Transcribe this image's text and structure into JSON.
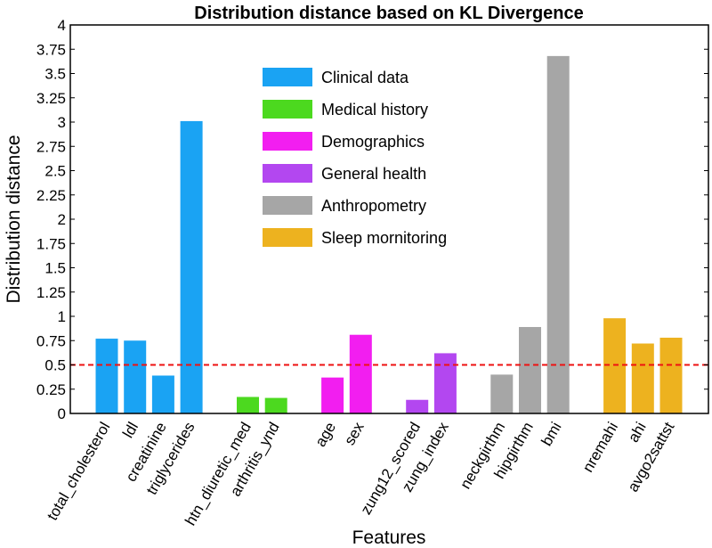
{
  "chart_data": {
    "type": "bar",
    "title": "Distribution distance based on KL Divergence",
    "xlabel": "Features",
    "ylabel": "Distribution distance",
    "ylim": [
      0,
      4
    ],
    "yticks": [
      "0",
      "0.25",
      "0.5",
      "0.75",
      "1",
      "1.25",
      "1.5",
      "1.75",
      "2",
      "2.25",
      "2.5",
      "2.75",
      "3",
      "3.25",
      "3.5",
      "3.75",
      "4"
    ],
    "threshold": 0.5,
    "groups": [
      {
        "name": "Clinical data",
        "color": "#1aa3f3",
        "features": [
          {
            "label": "total_cholesterol",
            "value": 0.77
          },
          {
            "label": "ldl",
            "value": 0.75
          },
          {
            "label": "creatinine",
            "value": 0.39
          },
          {
            "label": "triglycerides",
            "value": 3.01
          }
        ]
      },
      {
        "name": "Medical history",
        "color": "#4cd91f",
        "features": [
          {
            "label": "htn_diuretic_med",
            "value": 0.17
          },
          {
            "label": "arthritis_ynd",
            "value": 0.16
          }
        ]
      },
      {
        "name": "Demographics",
        "color": "#f21ef0",
        "features": [
          {
            "label": "age",
            "value": 0.37
          },
          {
            "label": "sex",
            "value": 0.81
          }
        ]
      },
      {
        "name": "General health",
        "color": "#b347f0",
        "features": [
          {
            "label": "zung12_scored",
            "value": 0.14
          },
          {
            "label": "zung_index",
            "value": 0.62
          }
        ]
      },
      {
        "name": "Anthropometry",
        "color": "#a6a6a6",
        "features": [
          {
            "label": "neckgirthm",
            "value": 0.4
          },
          {
            "label": "hipgirthm",
            "value": 0.89
          },
          {
            "label": "bmi",
            "value": 3.68
          }
        ]
      },
      {
        "name": "Sleep mornitoring",
        "color": "#edb21f",
        "features": [
          {
            "label": "nremahi",
            "value": 0.98
          },
          {
            "label": "ahi",
            "value": 0.72
          },
          {
            "label": "avgo2sattst",
            "value": 0.78
          }
        ]
      }
    ],
    "legend": [
      "Clinical data",
      "Medical history",
      "Demographics",
      "General health",
      "Anthropometry",
      "Sleep mornitoring"
    ]
  }
}
